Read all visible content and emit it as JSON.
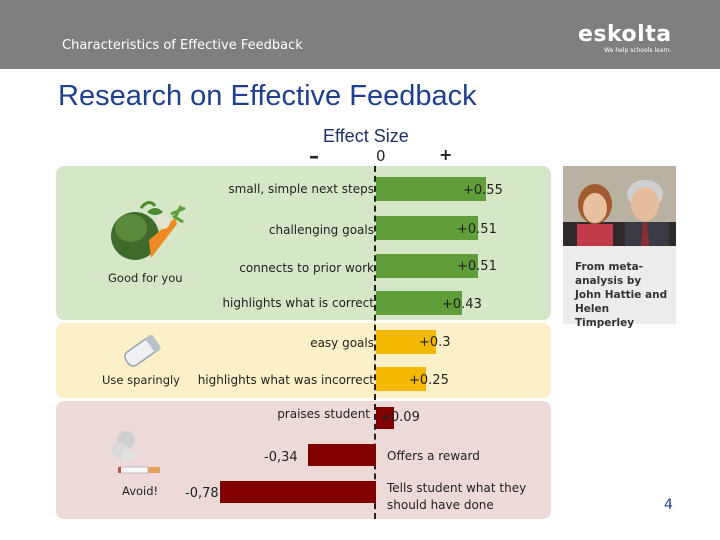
{
  "header": {
    "title": "Characteristics of Effective Feedback"
  },
  "brand": {
    "name": "eskolta",
    "tagline": "We help schools learn."
  },
  "slide": {
    "title": "Research on Effective Feedback",
    "page_number": "4"
  },
  "bands": {
    "good": {
      "label": "Good for you",
      "icon": "vegetables-icon",
      "color": "#d6e7c7"
    },
    "caution": {
      "label": "Use sparingly",
      "icon": "salt-shaker-icon",
      "color": "#fcf0c8"
    },
    "bad": {
      "label": "Avoid!",
      "icon": "cigarette-icon",
      "color": "#eed9d9"
    }
  },
  "sidebar": {
    "caption": "From meta-analysis by John Hattie and Helen Timperley"
  },
  "colors": {
    "green": "#5f9e38",
    "orange": "#f5b800",
    "dark_red": "#800000"
  },
  "chart_data": {
    "type": "bar",
    "orientation": "horizontal",
    "title": "Effect Size",
    "axis_markers": {
      "negative": "–",
      "zero": "0",
      "positive": "+"
    },
    "categories": [
      "small, simple next steps",
      "challenging goals",
      "connects to prior work",
      "highlights what is correct",
      "easy goals",
      "highlights what was incorrect",
      "praises student",
      "Offers a reward",
      "Tells student what they should have done"
    ],
    "values": [
      0.55,
      0.51,
      0.51,
      0.43,
      0.3,
      0.25,
      0.09,
      -0.34,
      -0.78
    ],
    "value_labels": [
      "+0.55",
      "+0.51",
      "+0.51",
      "+0.43",
      "+0.3",
      "+0.25",
      "+0.09",
      "-0,34",
      "-0,78"
    ],
    "groups": [
      "good",
      "good",
      "good",
      "good",
      "caution",
      "caution",
      "bad",
      "bad",
      "bad"
    ]
  }
}
